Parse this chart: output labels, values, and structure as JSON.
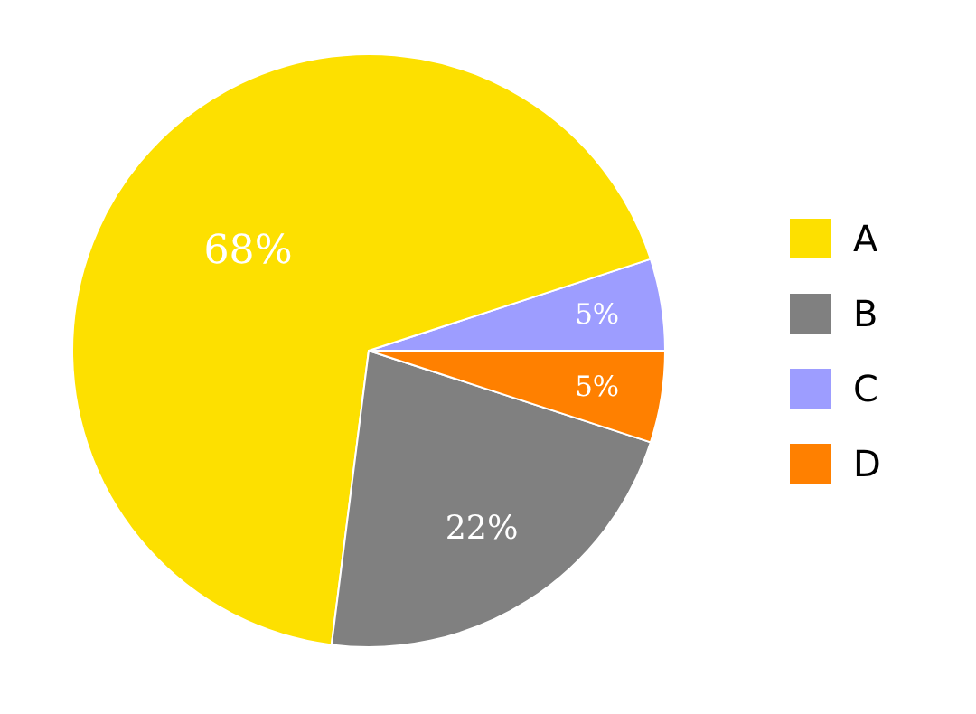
{
  "chart_data": {
    "type": "pie",
    "categories": [
      "A",
      "B",
      "C",
      "D"
    ],
    "values": [
      68,
      22,
      5,
      5
    ],
    "colors": [
      "#fde000",
      "#808080",
      "#9d9dff",
      "#ff8000"
    ],
    "value_labels": [
      "68%",
      "22%",
      "5%",
      "5%"
    ],
    "legend": "right"
  }
}
